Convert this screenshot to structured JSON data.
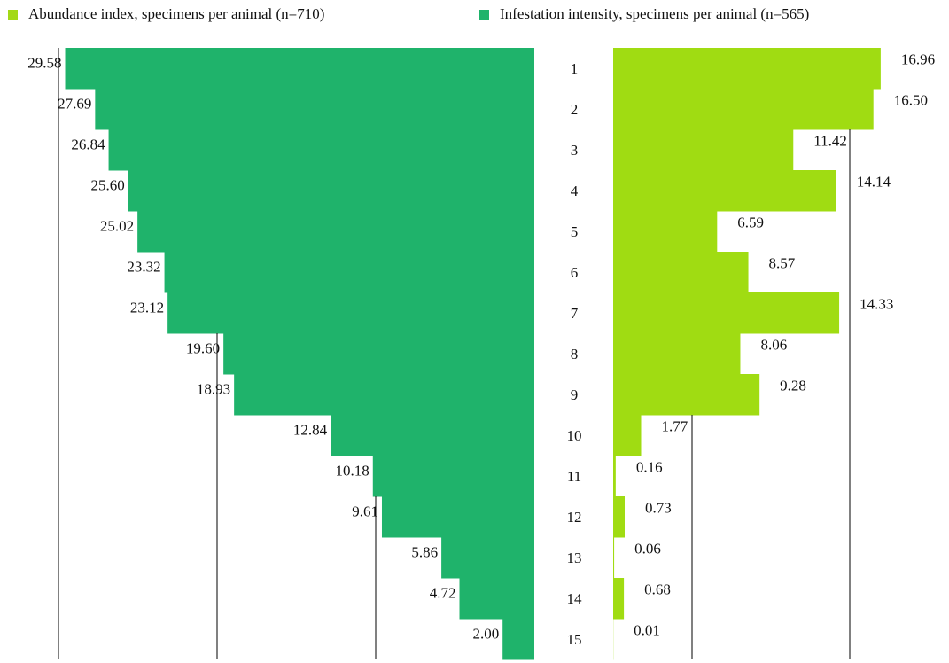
{
  "chart_data": {
    "type": "bar",
    "orientation": "horizontal",
    "layout": "back-to-back",
    "categories": [
      "1",
      "2",
      "3",
      "4",
      "5",
      "6",
      "7",
      "8",
      "9",
      "10",
      "11",
      "12",
      "13",
      "14",
      "15"
    ],
    "series": [
      {
        "name": "Abundance index, specimens per animal (n=710)",
        "values": [
          29.58,
          27.69,
          26.84,
          25.6,
          25.02,
          23.32,
          23.12,
          19.6,
          18.93,
          12.84,
          10.18,
          9.61,
          5.86,
          4.72,
          2.0
        ],
        "labels": [
          "29.58",
          "27.69",
          "26.84",
          "25.60",
          "25.02",
          "23.32",
          "23.12",
          "19.60",
          "18.93",
          "12.84",
          "10.18",
          "9.61",
          "5.86",
          "4.72",
          "2.00"
        ],
        "direction": "left",
        "xlim": [
          0,
          30
        ],
        "gridlines": [
          10,
          20,
          30
        ]
      },
      {
        "name": "Infestation intensity, specimens per animal (n=565)",
        "values": [
          16.96,
          16.5,
          11.42,
          14.14,
          6.59,
          8.57,
          14.33,
          8.06,
          9.28,
          1.77,
          0.16,
          0.73,
          0.06,
          0.68,
          0.01
        ],
        "labels": [
          "16.96",
          "16.50",
          "11.42",
          "14.14",
          "6.59",
          "8.57",
          "14.33",
          "8.06",
          "9.28",
          "1.77",
          "0.16",
          "0.73",
          "0.06",
          "0.68",
          "0.01"
        ],
        "direction": "right",
        "xlim": [
          0,
          18
        ],
        "gridlines": [
          5,
          15
        ]
      }
    ],
    "legend": [
      {
        "label": "Abundance index, specimens per animal (n=710)",
        "color": "#a3d916"
      },
      {
        "label": "Infestation intensity, specimens per animal (n=565)",
        "color": "#1fb36b"
      }
    ],
    "legend_position": "top",
    "grid": true,
    "colors": {
      "left_bars": "#1fb36b",
      "right_bars": "#a0dc12",
      "gridline": "#000000",
      "text": "#111111"
    }
  }
}
